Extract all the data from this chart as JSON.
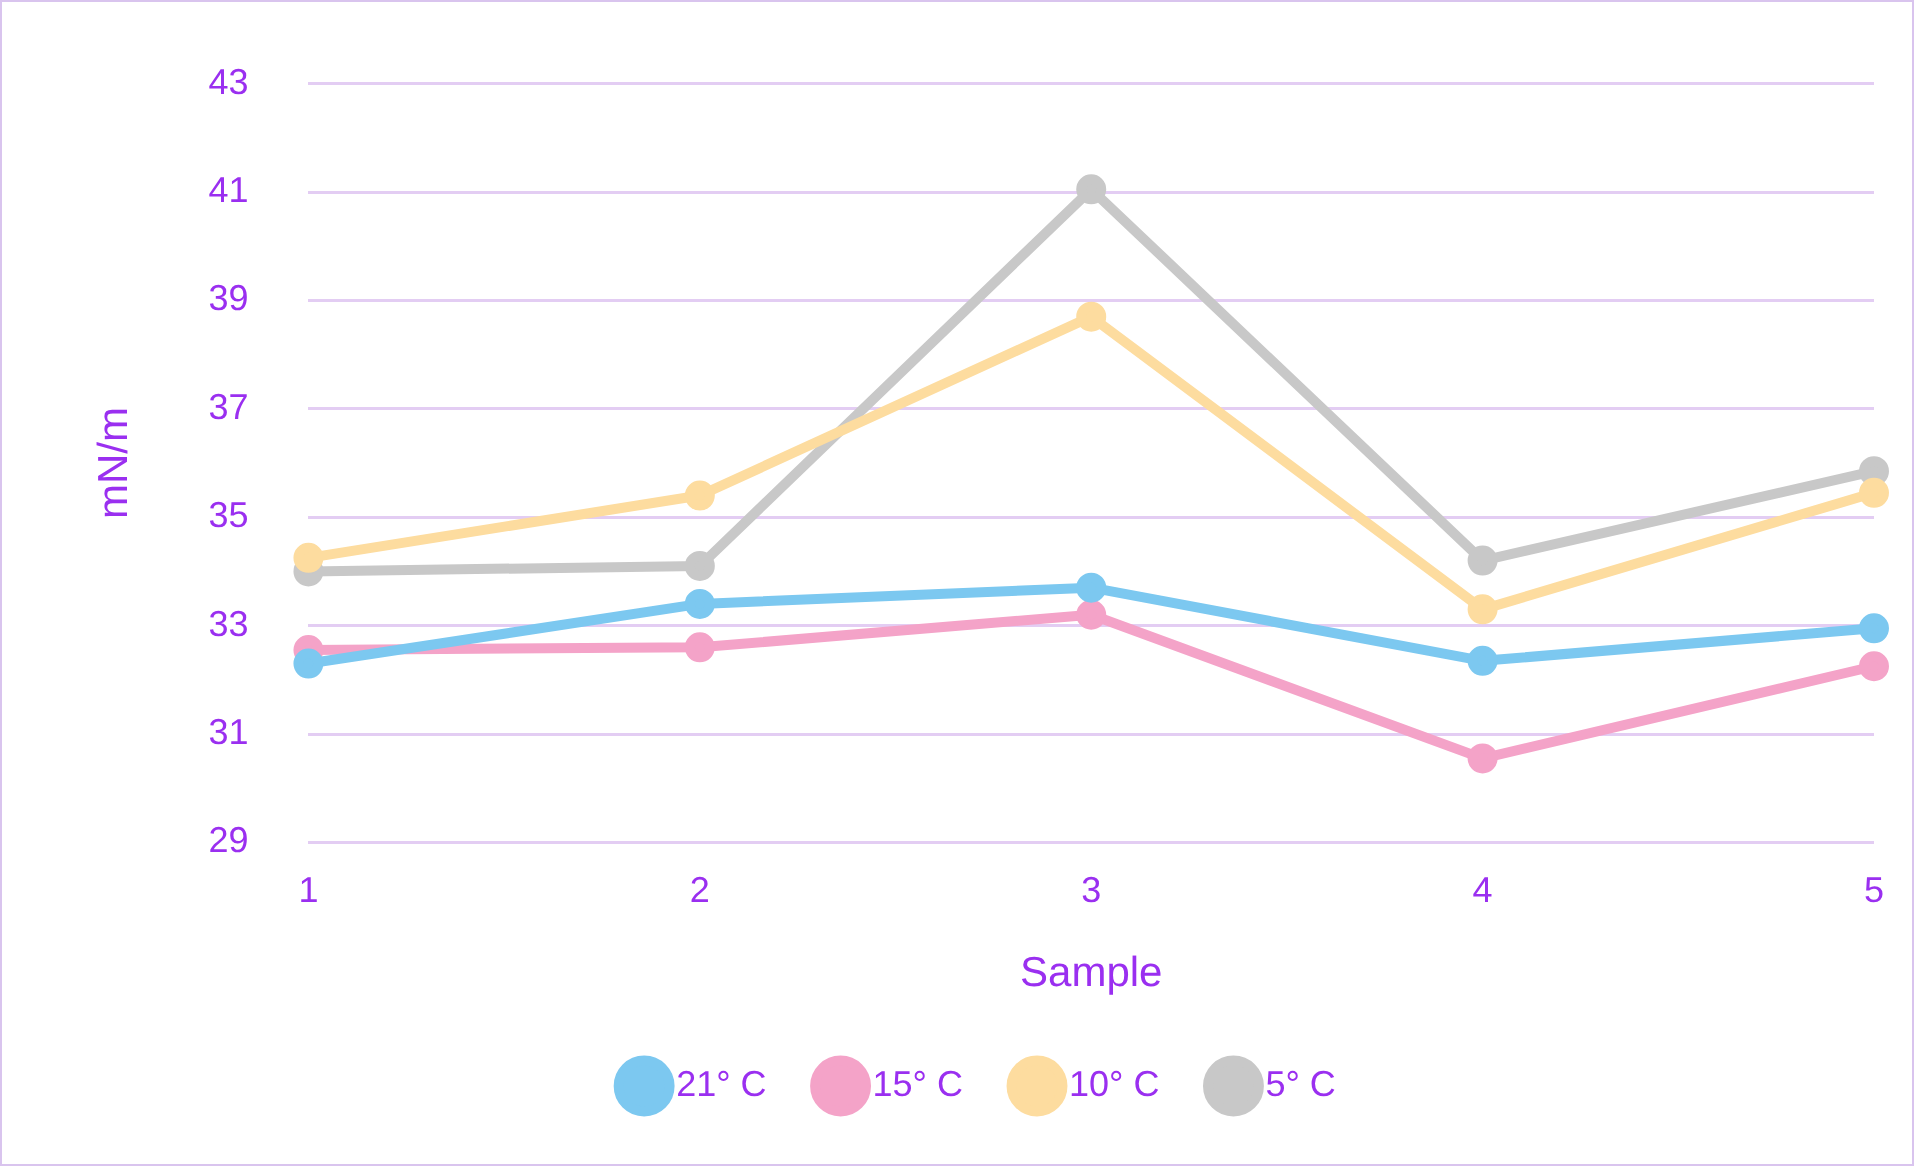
{
  "chart_data": {
    "type": "line",
    "xlabel": "Sample",
    "ylabel": "mN/m",
    "categories": [
      "1",
      "2",
      "3",
      "4",
      "5"
    ],
    "series": [
      {
        "name": "21° C",
        "color": "#7cc8f0",
        "values": [
          32.3,
          33.4,
          33.7,
          32.35,
          32.95
        ]
      },
      {
        "name": "15° C",
        "color": "#f4a3c8",
        "values": [
          32.55,
          32.6,
          33.2,
          30.55,
          32.25
        ]
      },
      {
        "name": "10° C",
        "color": "#fddc9f",
        "values": [
          34.25,
          35.4,
          38.7,
          33.3,
          35.45
        ]
      },
      {
        "name": "5° C",
        "color": "#c8c8c8",
        "values": [
          34.0,
          34.1,
          41.05,
          34.2,
          35.85
        ]
      }
    ],
    "ylim": [
      29,
      43
    ],
    "yticks": [
      29,
      31,
      33,
      35,
      37,
      39,
      41,
      43
    ],
    "grid": "y",
    "legend": "bottom",
    "marker": "circle",
    "line_style": "solid"
  }
}
